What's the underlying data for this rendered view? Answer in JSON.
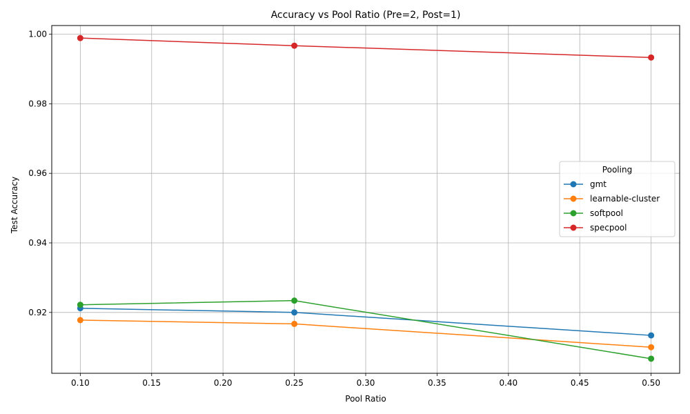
{
  "chart_data": {
    "type": "line",
    "title": "Accuracy vs Pool Ratio (Pre=2, Post=1)",
    "xlabel": "Pool Ratio",
    "ylabel": "Test Accuracy",
    "x": [
      0.1,
      0.25,
      0.5
    ],
    "xlim": [
      0.08,
      0.52
    ],
    "ylim": [
      0.9025,
      1.0025
    ],
    "xticks": [
      "0.10",
      "0.15",
      "0.20",
      "0.25",
      "0.30",
      "0.35",
      "0.40",
      "0.45",
      "0.50"
    ],
    "yticks": [
      "0.92",
      "0.94",
      "0.96",
      "0.98",
      "1.00"
    ],
    "grid": true,
    "legend": {
      "title": "Pooling",
      "placement": "center-right"
    },
    "series": [
      {
        "name": "gmt",
        "color": "#1f77b4",
        "values": [
          0.9212,
          0.92,
          0.9134
        ]
      },
      {
        "name": "learnable-cluster",
        "color": "#ff7f0e",
        "values": [
          0.9178,
          0.9167,
          0.91
        ]
      },
      {
        "name": "softpool",
        "color": "#2ca02c",
        "values": [
          0.9222,
          0.9234,
          0.9067
        ]
      },
      {
        "name": "specpool",
        "color": "#d62728",
        "values": [
          0.9989,
          0.9967,
          0.9933
        ]
      }
    ]
  }
}
